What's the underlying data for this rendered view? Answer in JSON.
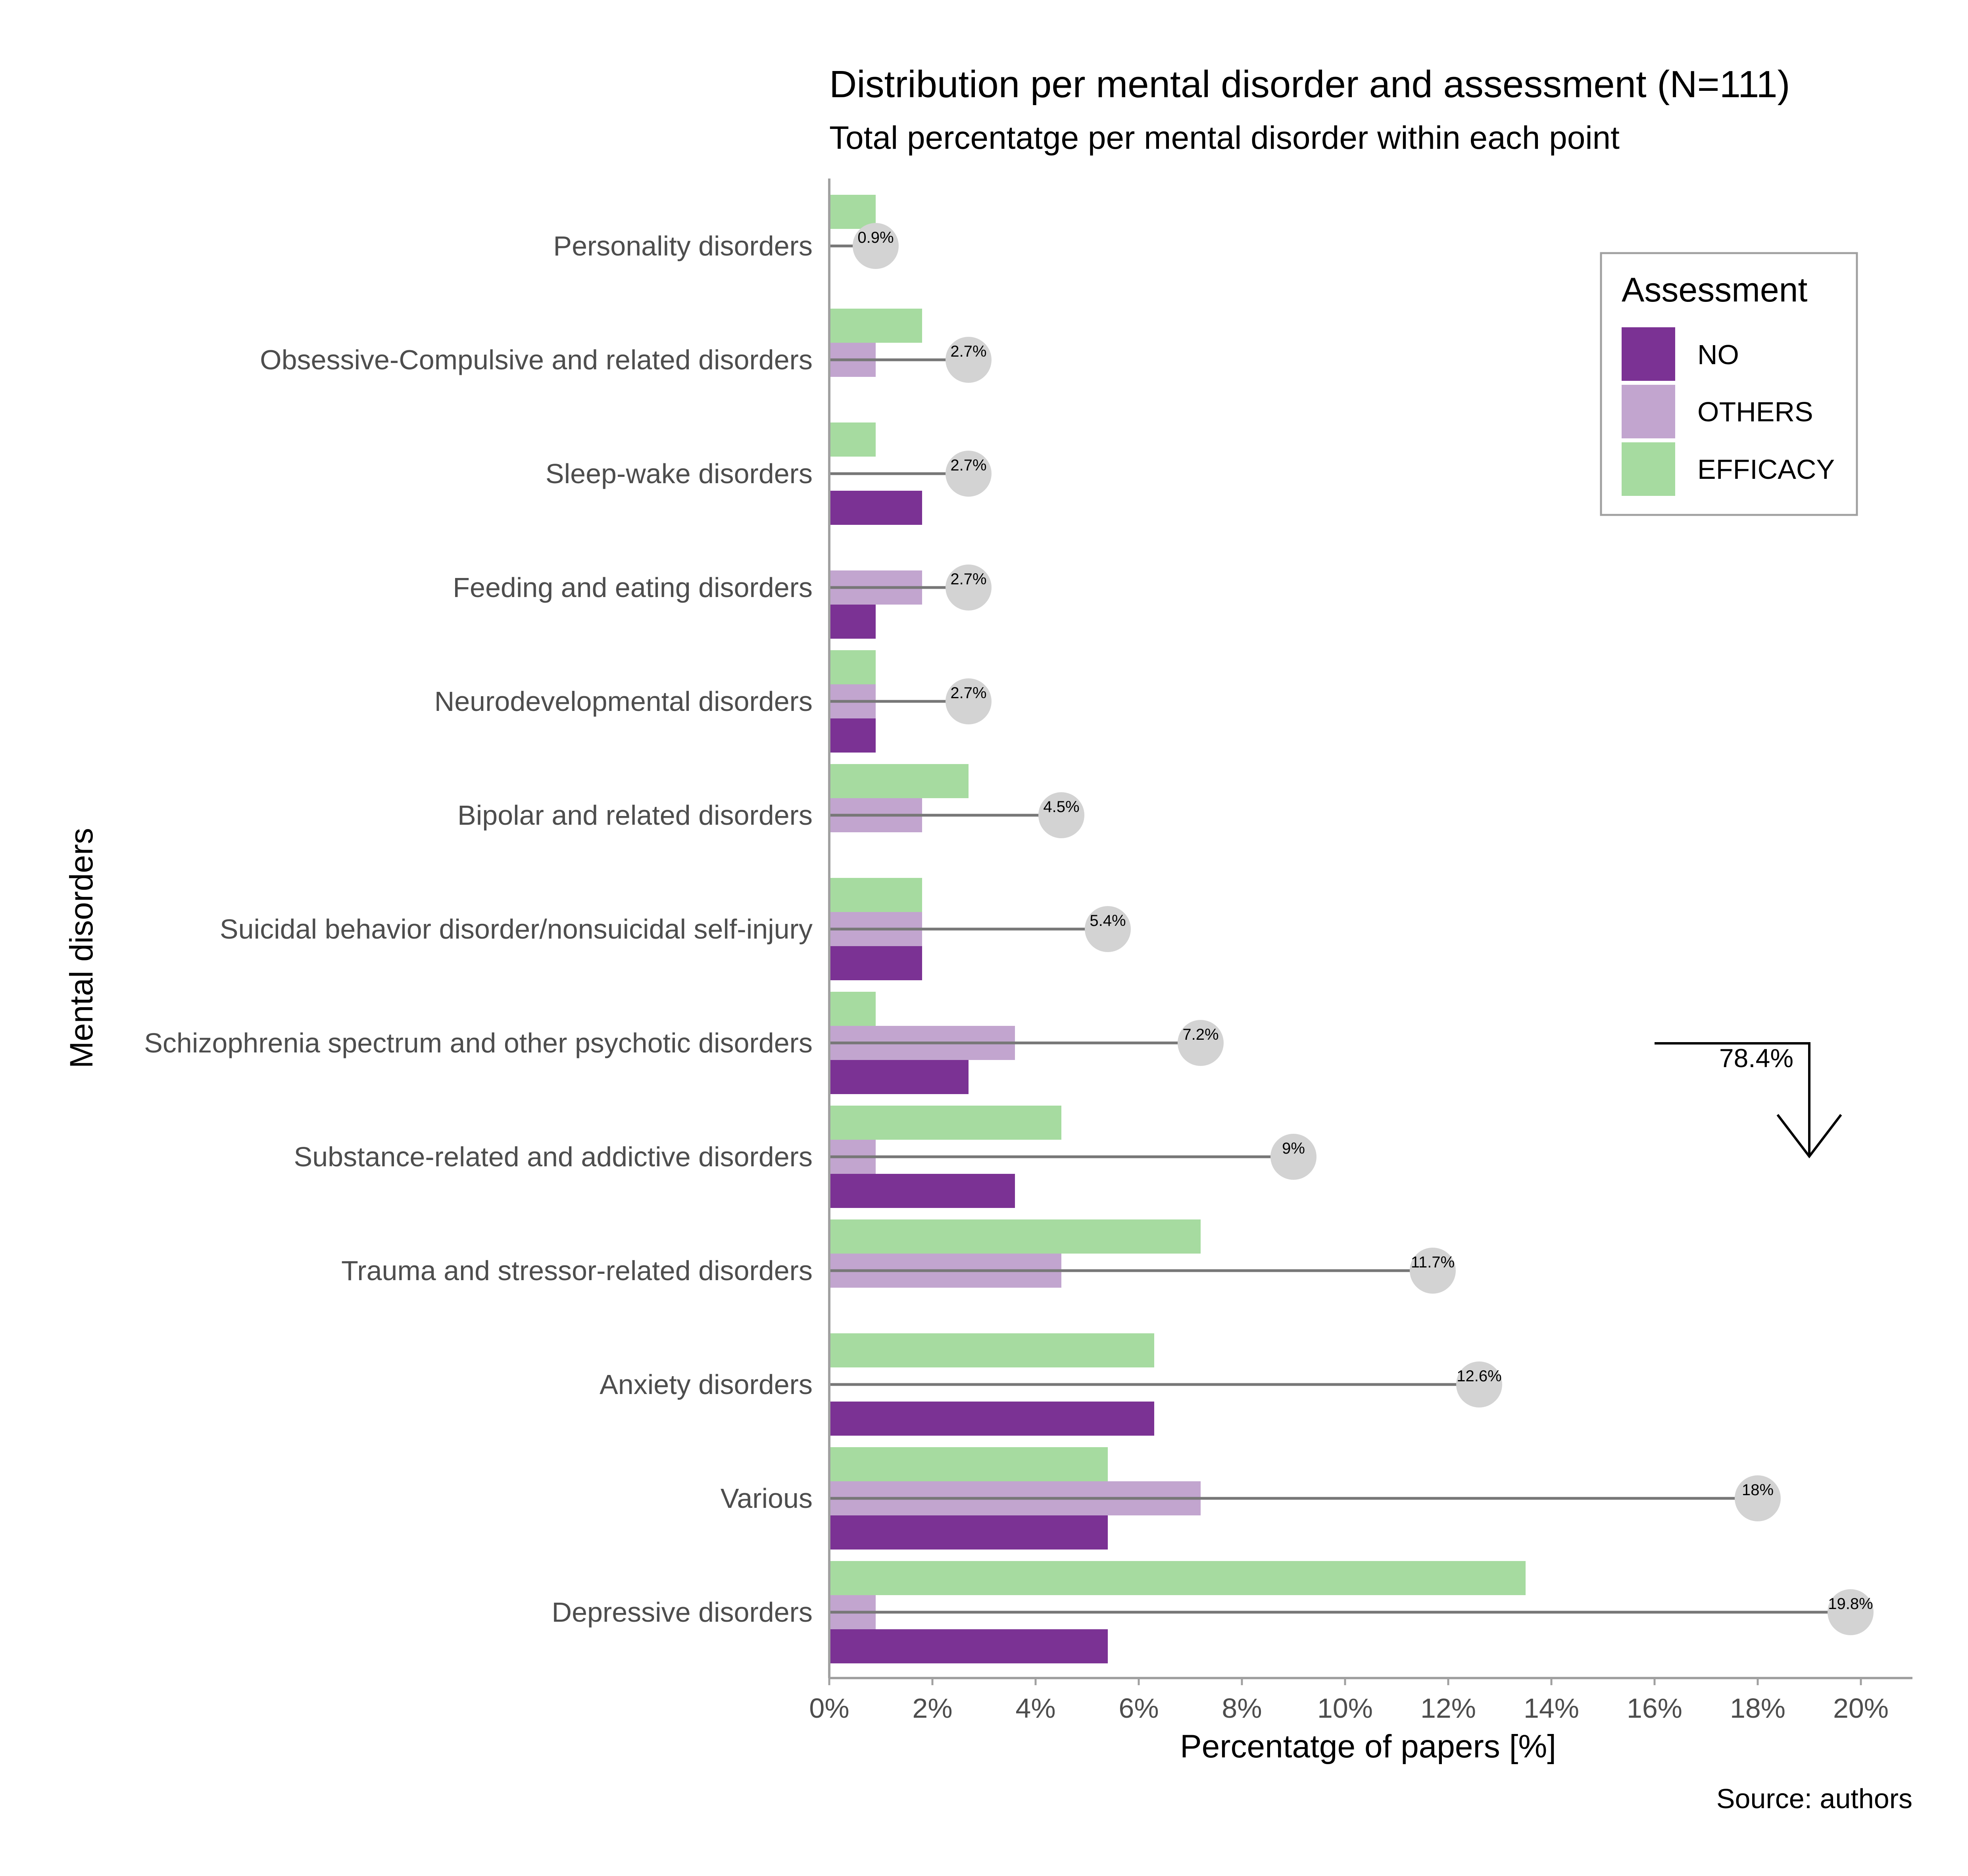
{
  "chart_data": {
    "type": "bar",
    "orientation": "horizontal",
    "title": "Distribution per mental disorder and assessment (N=111)",
    "subtitle": "Total percentatge per mental disorder within each point",
    "xlabel": "Percentatge of papers [%]",
    "ylabel": "Mental disorders",
    "caption": "Source: authors",
    "xlim": [
      0,
      21
    ],
    "x_ticks": [
      "0%",
      "2%",
      "4%",
      "6%",
      "8%",
      "10%",
      "12%",
      "14%",
      "16%",
      "18%",
      "20%"
    ],
    "grid": false,
    "categories": [
      "Personality disorders",
      "Obsessive-Compulsive and related disorders",
      "Sleep-wake disorders",
      "Feeding and eating disorders",
      "Neurodevelopmental disorders",
      "Bipolar and related disorders",
      "Suicidal behavior disorder/nonsuicidal self-injury",
      "Schizophrenia spectrum and other psychotic disorders",
      "Substance-related and addictive disorders",
      "Trauma and stressor-related disorders",
      "Anxiety disorders",
      "Various",
      "Depressive disorders"
    ],
    "legend": {
      "title": "Assessment",
      "placement": "top-right",
      "entries": [
        "NO",
        "OTHERS",
        "EFFICACY"
      ]
    },
    "series": [
      {
        "name": "EFFICACY",
        "color": "#a6dba0",
        "values": [
          0.9,
          1.8,
          0.9,
          0,
          0.9,
          2.7,
          1.8,
          0.9,
          4.5,
          7.2,
          6.3,
          5.4,
          13.5
        ]
      },
      {
        "name": "OTHERS",
        "color": "#c2a5cf",
        "values": [
          0,
          0.9,
          0,
          1.8,
          0.9,
          1.8,
          1.8,
          3.6,
          0.9,
          4.5,
          0,
          7.2,
          0.9
        ]
      },
      {
        "name": "NO",
        "color": "#7b3294",
        "values": [
          0,
          0,
          1.8,
          0.9,
          0.9,
          0,
          1.8,
          2.7,
          3.6,
          0,
          6.3,
          5.4,
          5.4
        ]
      }
    ],
    "totals": [
      0.9,
      2.7,
      2.7,
      2.7,
      2.7,
      4.5,
      5.4,
      7.2,
      9,
      11.7,
      12.6,
      18,
      19.8
    ],
    "total_labels": [
      "0.9%",
      "2.7%",
      "2.7%",
      "2.7%",
      "2.7%",
      "4.5%",
      "5.4%",
      "7.2%",
      "9%",
      "11.7%",
      "12.6%",
      "18%",
      "19.8%"
    ],
    "annotation": {
      "text": "78.4%"
    }
  }
}
